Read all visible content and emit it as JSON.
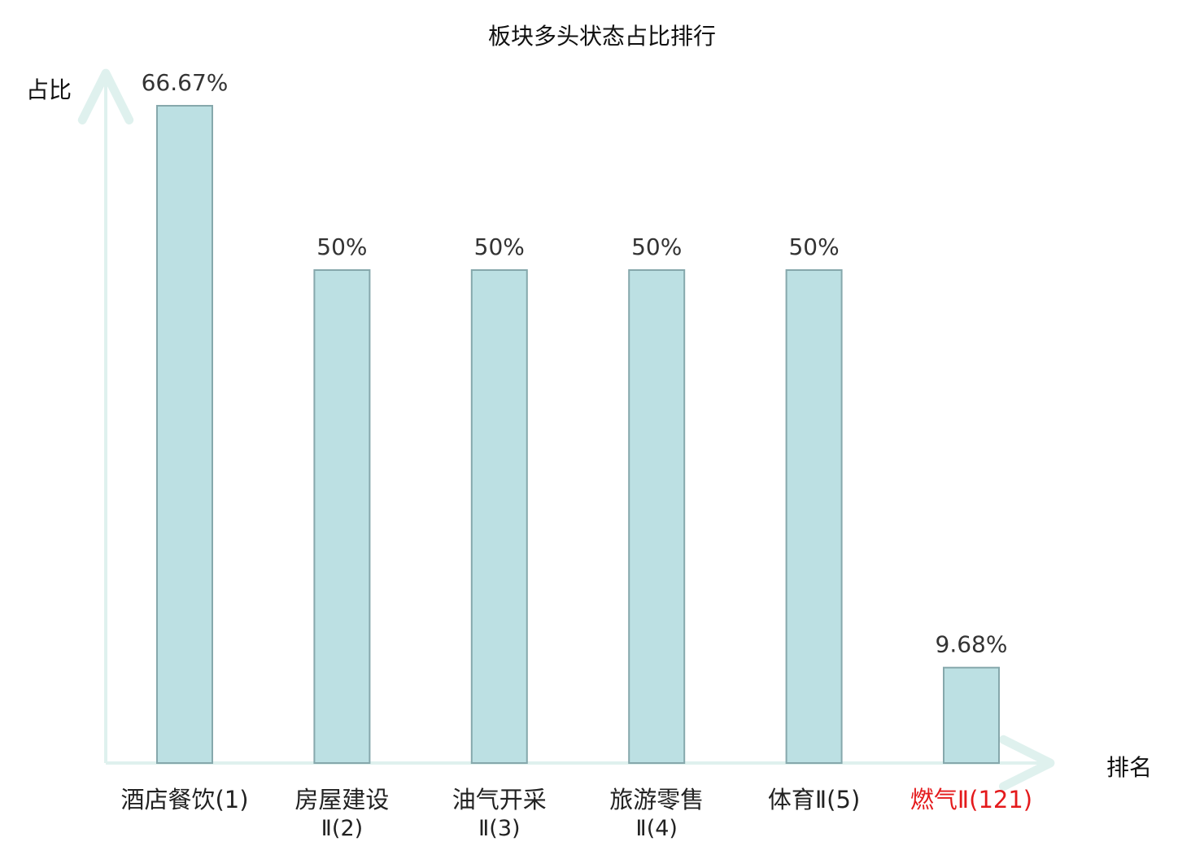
{
  "chart_data": {
    "type": "bar",
    "title": "板块多头状态占比排行",
    "ylabel": "占比",
    "xlabel": "排名",
    "ylim": [
      0,
      70
    ],
    "grid": false,
    "legend": "none",
    "categories": [
      {
        "name": "酒店餐饮",
        "rank": "(1)",
        "lines": [
          "酒店餐饮(1)"
        ]
      },
      {
        "name": "房屋建设Ⅱ",
        "rank": "(2)",
        "lines": [
          "房屋建设",
          "Ⅱ(2)"
        ]
      },
      {
        "name": "油气开采Ⅱ",
        "rank": "(3)",
        "lines": [
          "油气开采",
          "Ⅱ(3)"
        ]
      },
      {
        "name": "旅游零售Ⅱ",
        "rank": "(4)",
        "lines": [
          "旅游零售",
          "Ⅱ(4)"
        ]
      },
      {
        "name": "体育Ⅱ",
        "rank": "(5)",
        "lines": [
          "体育Ⅱ(5)"
        ]
      },
      {
        "name": "燃气Ⅱ",
        "rank": "(121)",
        "lines": [
          "燃气Ⅱ(121)"
        ],
        "highlight": true
      }
    ],
    "values": [
      66.67,
      50,
      50,
      50,
      50,
      9.68
    ],
    "value_labels": [
      "66.67%",
      "50%",
      "50%",
      "50%",
      "50%",
      "9.68%"
    ],
    "colors": {
      "bar_fill": "#bce0e3",
      "bar_stroke": "#86a8ac",
      "axis": "#dff1ee",
      "highlight_label": "#e41a1c",
      "normal_label": "#222222"
    }
  }
}
